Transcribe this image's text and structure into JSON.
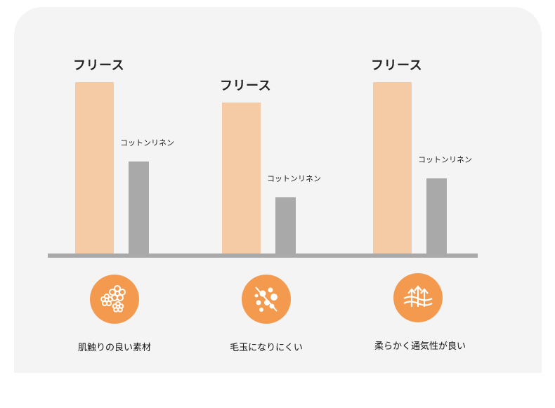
{
  "colors": {
    "fleece": "#f5cba5",
    "cotton_linen": "#a9a9a9",
    "icon_bg": "#f39a4f",
    "baseline": "#a9a9a9",
    "panel": "#f4f4f4"
  },
  "chart_data": {
    "type": "bar",
    "categories": [
      "肌触りの良い素材",
      "毛玉になりにくい",
      "柔らかく通気性が良い"
    ],
    "series": [
      {
        "name": "フリース",
        "values": [
          100,
          88,
          100
        ]
      },
      {
        "name": "コットンリネン",
        "values": [
          54,
          33,
          44
        ]
      }
    ],
    "title": "",
    "xlabel": "",
    "ylabel": "",
    "ylim": [
      0,
      100
    ],
    "grid": false,
    "axis_ticks": false,
    "data_labels": [
      [
        "フリース",
        "コットンリネン"
      ],
      [
        "フリース",
        "コットンリネン"
      ],
      [
        "フリース",
        "コットンリネン"
      ]
    ]
  },
  "features": [
    {
      "icon": "flower-icon",
      "label": "肌触りの良い素材"
    },
    {
      "icon": "no-pilling-icon",
      "label": "毛玉になりにくい"
    },
    {
      "icon": "breathable-icon",
      "label": "柔らかく通気性が良い"
    }
  ]
}
